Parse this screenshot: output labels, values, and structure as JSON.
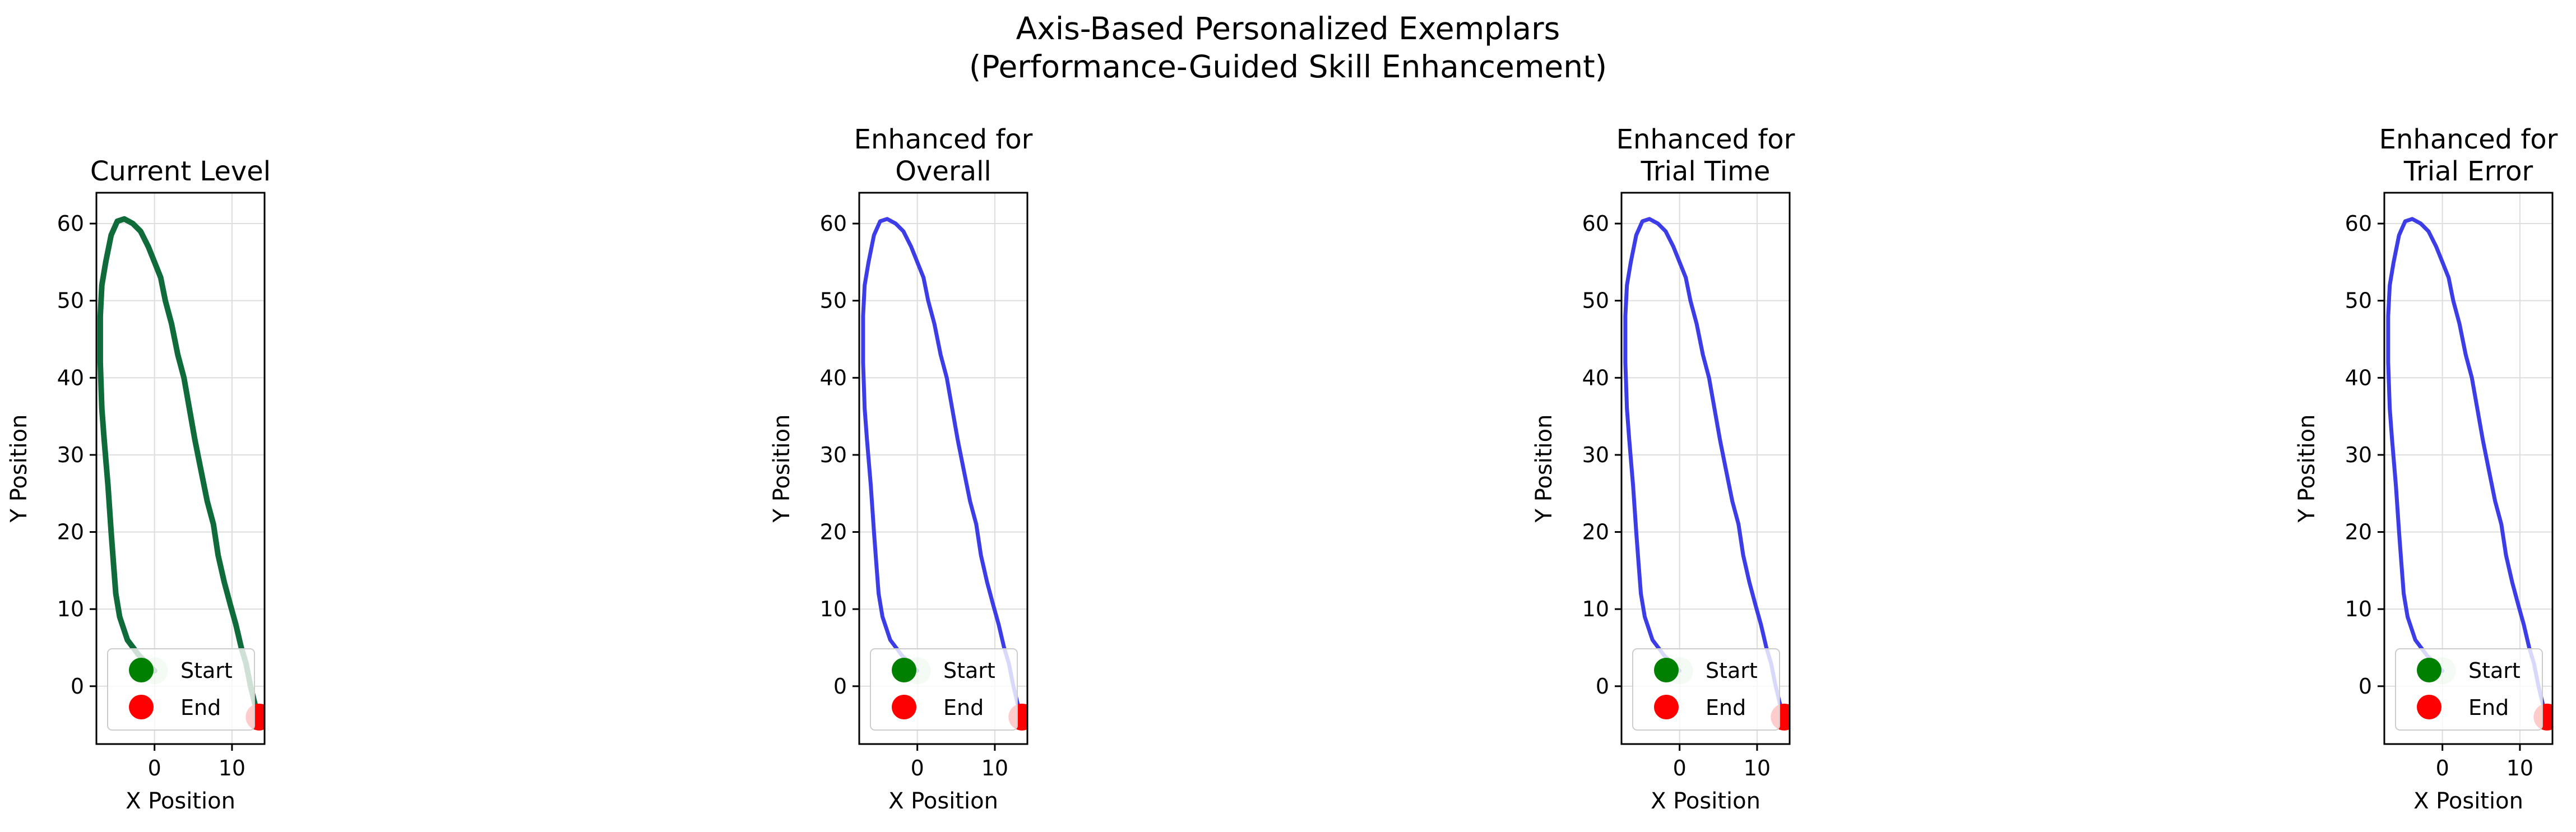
{
  "figure": {
    "title_line1": "Axis-Based Personalized Exemplars",
    "title_line2": "(Performance-Guided Skill Enhancement)"
  },
  "colors": {
    "current": "#0f6b3a",
    "enhanced": "#3333e6",
    "start": "#008000",
    "end": "#ff0000",
    "grid": "#dddddd"
  },
  "chart_data": [
    {
      "type": "line",
      "title": [
        "Current Level"
      ],
      "xlabel": "X Position",
      "ylabel": "Y Position",
      "xlim": [
        -7.5,
        14.2
      ],
      "ylim": [
        -7.5,
        64.0
      ],
      "xticks": [
        0,
        10
      ],
      "yticks": [
        0,
        10,
        20,
        30,
        40,
        50,
        60
      ],
      "grid": true,
      "legend": {
        "placement": "lower-left",
        "entries": [
          "Start",
          "End"
        ]
      },
      "series": [
        {
          "color_key": "current",
          "x": [
            0,
            -2,
            -3.5,
            -4.5,
            -5,
            -5.3,
            -5.6,
            -6,
            -6.5,
            -6.8,
            -7,
            -7,
            -6.8,
            -6.3,
            -5.6,
            -4.8,
            -3.9,
            -2.8,
            -1.8,
            -0.8,
            0,
            0.8,
            1.4,
            2.2,
            3.0,
            3.8,
            4.5,
            5.2,
            6.0,
            6.8,
            7.6,
            8.2,
            9.0,
            9.8,
            10.5,
            11.2,
            11.8,
            12.4,
            13.0,
            13.5
          ],
          "y": [
            2,
            4,
            6,
            9,
            12,
            16,
            20,
            26,
            32,
            36,
            42,
            48,
            52,
            55,
            58.5,
            60.3,
            60.6,
            60,
            59,
            57,
            55,
            53,
            50,
            47,
            43,
            40,
            36,
            32,
            28,
            24,
            21,
            17,
            13.5,
            10.5,
            8,
            5,
            3,
            0,
            -2.5,
            -4
          ]
        }
      ],
      "points": {
        "start": [
          0,
          2
        ],
        "end": [
          13.5,
          -4
        ]
      }
    },
    {
      "type": "line",
      "title": [
        "Enhanced for",
        "Overall"
      ],
      "xlabel": "X Position",
      "ylabel": "Y Position",
      "xlim": [
        -7.5,
        14.2
      ],
      "ylim": [
        -7.5,
        64.0
      ],
      "xticks": [
        0,
        10
      ],
      "yticks": [
        0,
        10,
        20,
        30,
        40,
        50,
        60
      ],
      "grid": true,
      "legend": {
        "placement": "lower-left",
        "entries": [
          "Start",
          "End"
        ]
      },
      "series": [
        {
          "color_key": "enhanced",
          "x": [
            0,
            -2,
            -3.5,
            -4.5,
            -5,
            -5.3,
            -5.6,
            -6,
            -6.5,
            -6.8,
            -7,
            -7,
            -6.8,
            -6.3,
            -5.6,
            -4.8,
            -3.9,
            -2.8,
            -1.8,
            -0.8,
            0,
            0.8,
            1.4,
            2.2,
            3.0,
            3.8,
            4.5,
            5.2,
            6.0,
            6.8,
            7.6,
            8.2,
            9.0,
            9.8,
            10.5,
            11.2,
            11.8,
            12.4,
            13.0,
            13.5
          ],
          "y": [
            2,
            4,
            6,
            9,
            12,
            16,
            20,
            26,
            32,
            36,
            42,
            48,
            52,
            55,
            58.5,
            60.3,
            60.6,
            60,
            59,
            57,
            55,
            53,
            50,
            47,
            43,
            40,
            36,
            32,
            28,
            24,
            21,
            17,
            13.5,
            10.5,
            8,
            5,
            3,
            0,
            -2.5,
            -4
          ]
        }
      ],
      "points": {
        "start": [
          0,
          2
        ],
        "end": [
          13.5,
          -4
        ]
      }
    },
    {
      "type": "line",
      "title": [
        "Enhanced for",
        "Trial Time"
      ],
      "xlabel": "X Position",
      "ylabel": "Y Position",
      "xlim": [
        -7.5,
        14.2
      ],
      "ylim": [
        -7.5,
        64.0
      ],
      "xticks": [
        0,
        10
      ],
      "yticks": [
        0,
        10,
        20,
        30,
        40,
        50,
        60
      ],
      "grid": true,
      "legend": {
        "placement": "lower-left",
        "entries": [
          "Start",
          "End"
        ]
      },
      "series": [
        {
          "color_key": "enhanced",
          "x": [
            0,
            -2,
            -3.5,
            -4.5,
            -5,
            -5.3,
            -5.6,
            -6,
            -6.5,
            -6.8,
            -7,
            -7,
            -6.8,
            -6.3,
            -5.6,
            -4.8,
            -3.9,
            -2.8,
            -1.8,
            -0.8,
            0,
            0.8,
            1.4,
            2.2,
            3.0,
            3.8,
            4.5,
            5.2,
            6.0,
            6.8,
            7.6,
            8.2,
            9.0,
            9.8,
            10.5,
            11.2,
            11.8,
            12.4,
            13.0,
            13.5
          ],
          "y": [
            2,
            4,
            6,
            9,
            12,
            16,
            20,
            26,
            32,
            36,
            42,
            48,
            52,
            55,
            58.5,
            60.3,
            60.6,
            60,
            59,
            57,
            55,
            53,
            50,
            47,
            43,
            40,
            36,
            32,
            28,
            24,
            21,
            17,
            13.5,
            10.5,
            8,
            5,
            3,
            0,
            -2.5,
            -4
          ]
        }
      ],
      "points": {
        "start": [
          0,
          2
        ],
        "end": [
          13.5,
          -4
        ]
      }
    },
    {
      "type": "line",
      "title": [
        "Enhanced for",
        "Trial Error"
      ],
      "xlabel": "X Position",
      "ylabel": "Y Position",
      "xlim": [
        -7.5,
        14.2
      ],
      "ylim": [
        -7.5,
        64.0
      ],
      "xticks": [
        0,
        10
      ],
      "yticks": [
        0,
        10,
        20,
        30,
        40,
        50,
        60
      ],
      "grid": true,
      "legend": {
        "placement": "lower-left",
        "entries": [
          "Start",
          "End"
        ]
      },
      "series": [
        {
          "color_key": "enhanced",
          "x": [
            0,
            -2,
            -3.5,
            -4.5,
            -5,
            -5.3,
            -5.6,
            -6,
            -6.5,
            -6.8,
            -7,
            -7,
            -6.8,
            -6.3,
            -5.6,
            -4.8,
            -3.9,
            -2.8,
            -1.8,
            -0.8,
            0,
            0.8,
            1.4,
            2.2,
            3.0,
            3.8,
            4.5,
            5.2,
            6.0,
            6.8,
            7.6,
            8.2,
            9.0,
            9.8,
            10.5,
            11.2,
            11.8,
            12.4,
            13.0,
            13.5
          ],
          "y": [
            2,
            4,
            6,
            9,
            12,
            16,
            20,
            26,
            32,
            36,
            42,
            48,
            52,
            55,
            58.5,
            60.3,
            60.6,
            60,
            59,
            57,
            55,
            53,
            50,
            47,
            43,
            40,
            36,
            32,
            28,
            24,
            21,
            17,
            13.5,
            10.5,
            8,
            5,
            3,
            0,
            -2.5,
            -4
          ]
        }
      ],
      "points": {
        "start": [
          0,
          2
        ],
        "end": [
          13.5,
          -4
        ]
      }
    }
  ]
}
